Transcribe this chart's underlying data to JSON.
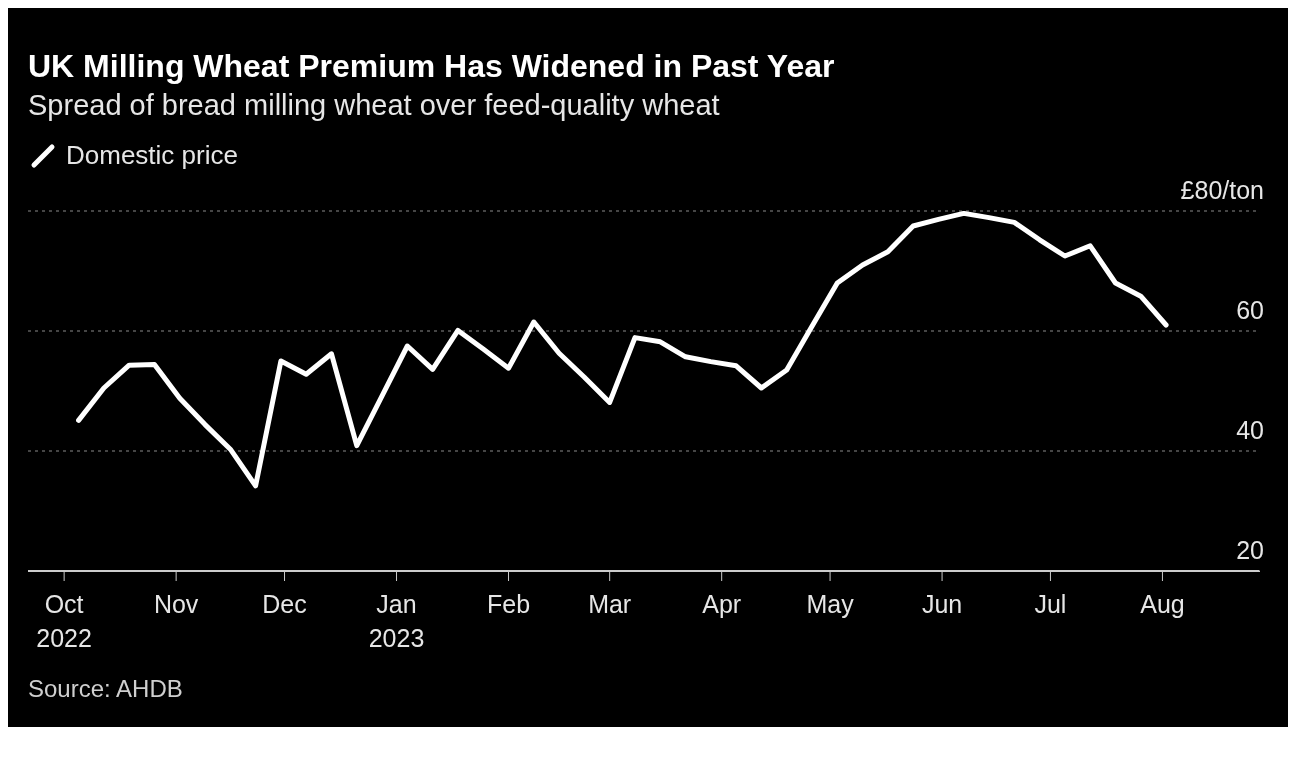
{
  "chart_data": {
    "type": "line",
    "title": "UK Milling Wheat Premium Has Widened in Past Year",
    "subtitle": "Spread of bread milling wheat over feed-quality wheat",
    "x": [
      "2022-10-05",
      "2022-10-12",
      "2022-10-19",
      "2022-10-26",
      "2022-11-02",
      "2022-11-09",
      "2022-11-16",
      "2022-11-23",
      "2022-11-30",
      "2022-12-07",
      "2022-12-14",
      "2022-12-21",
      "2022-12-28",
      "2023-01-04",
      "2023-01-11",
      "2023-01-18",
      "2023-01-25",
      "2023-02-01",
      "2023-02-08",
      "2023-02-15",
      "2023-02-22",
      "2023-03-01",
      "2023-03-08",
      "2023-03-15",
      "2023-03-22",
      "2023-03-29",
      "2023-04-05",
      "2023-04-12",
      "2023-04-19",
      "2023-04-26",
      "2023-05-03",
      "2023-05-10",
      "2023-05-17",
      "2023-05-24",
      "2023-05-31",
      "2023-06-07",
      "2023-06-14",
      "2023-06-21",
      "2023-06-28",
      "2023-07-05",
      "2023-07-12",
      "2023-07-19",
      "2023-07-26",
      "2023-08-02"
    ],
    "series": [
      {
        "name": "Domestic price",
        "color": "#ffffff",
        "values": [
          45.1,
          50.5,
          54.3,
          54.4,
          48.8,
          44.4,
          40.3,
          34.2,
          55.0,
          52.8,
          56.2,
          40.9,
          49.2,
          57.5,
          53.6,
          60.1,
          57.0,
          53.8,
          61.5,
          56.3,
          52.3,
          48.1,
          58.9,
          58.2,
          55.7,
          54.9,
          54.2,
          50.5,
          53.5,
          60.8,
          68.0,
          71.0,
          73.2,
          77.5,
          78.6,
          79.6,
          78.9,
          78.1,
          75.2,
          72.5,
          74.2,
          68.0,
          65.8,
          61.0
        ]
      }
    ],
    "xlim": [
      "2022-09-21",
      "2023-08-28"
    ],
    "xticks": [
      {
        "value": "2022-10-01",
        "label": "Oct\n2022"
      },
      {
        "value": "2022-11-01",
        "label": "Nov"
      },
      {
        "value": "2022-12-01",
        "label": "Dec"
      },
      {
        "value": "2023-01-01",
        "label": "Jan\n2023"
      },
      {
        "value": "2023-02-01",
        "label": "Feb"
      },
      {
        "value": "2023-03-01",
        "label": "Mar"
      },
      {
        "value": "2023-04-01",
        "label": "Apr"
      },
      {
        "value": "2023-05-01",
        "label": "May"
      },
      {
        "value": "2023-06-01",
        "label": "Jun"
      },
      {
        "value": "2023-07-01",
        "label": "Jul"
      },
      {
        "value": "2023-08-01",
        "label": "Aug"
      }
    ],
    "ylim": [
      20,
      80
    ],
    "yticks": [
      20,
      40,
      60,
      {
        "value": 80,
        "label": "£80/ton"
      }
    ],
    "grid": "y",
    "legend": "top left",
    "line_style": "solid",
    "marker": "none",
    "annotations": [
      "Source: AHDB"
    ]
  }
}
